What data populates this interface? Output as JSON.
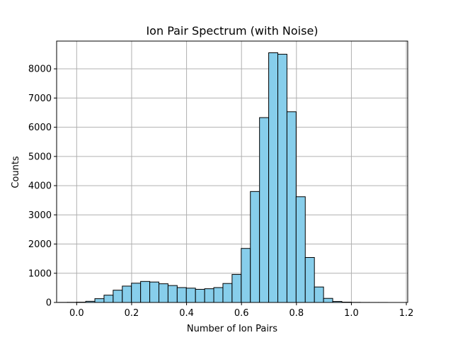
{
  "chart_data": {
    "type": "bar",
    "title": "Ion Pair Spectrum (with Noise)",
    "xlabel": "Number of Ion Pairs",
    "ylabel": "Counts",
    "xlim": [
      -0.073,
      1.205
    ],
    "ylim": [
      0,
      8950
    ],
    "grid": true,
    "bar_color": "#87CEEB",
    "edge_color": "#000000",
    "bin_width": 0.0333,
    "x_ticks": [
      {
        "value": 0.0,
        "label": "0.0"
      },
      {
        "value": 0.2,
        "label": "0.2"
      },
      {
        "value": 0.4,
        "label": "0.4"
      },
      {
        "value": 0.6,
        "label": "0.6"
      },
      {
        "value": 0.8,
        "label": "0.8"
      },
      {
        "value": 1.0,
        "label": "1.0"
      },
      {
        "value": 1.2,
        "label": "1.2"
      }
    ],
    "y_ticks": [
      {
        "value": 0,
        "label": "0"
      },
      {
        "value": 1000,
        "label": "1000"
      },
      {
        "value": 2000,
        "label": "2000"
      },
      {
        "value": 3000,
        "label": "3000"
      },
      {
        "value": 4000,
        "label": "4000"
      },
      {
        "value": 5000,
        "label": "5000"
      },
      {
        "value": 6000,
        "label": "6000"
      },
      {
        "value": 7000,
        "label": "7000"
      },
      {
        "value": 8000,
        "label": "8000"
      }
    ],
    "bin_edges": [
      -0.067,
      -0.0337,
      -0.0004,
      0.0329,
      0.0662,
      0.0995,
      0.1328,
      0.1661,
      0.1994,
      0.2327,
      0.266,
      0.2993,
      0.3326,
      0.3659,
      0.3992,
      0.4325,
      0.4658,
      0.4991,
      0.5324,
      0.5657,
      0.599,
      0.6323,
      0.6656,
      0.6989,
      0.7322,
      0.7655,
      0.7988,
      0.8321,
      0.8654,
      0.8987,
      0.932,
      0.9653,
      0.9986,
      1.0319,
      1.0652,
      1.0985,
      1.1318,
      1.1651
    ],
    "counts": [
      3,
      5,
      10,
      40,
      130,
      250,
      420,
      560,
      660,
      720,
      700,
      640,
      580,
      510,
      490,
      450,
      470,
      510,
      650,
      960,
      1850,
      3800,
      6330,
      8550,
      8500,
      6530,
      3620,
      1540,
      530,
      140,
      35,
      12,
      4,
      2,
      1,
      1,
      0
    ]
  }
}
